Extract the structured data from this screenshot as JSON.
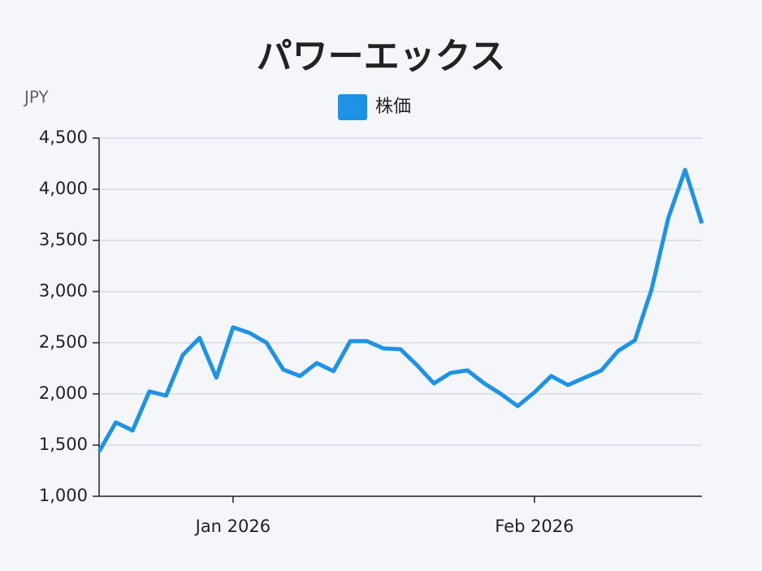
{
  "chart_data": {
    "type": "line",
    "title": "パワーエックス",
    "y_label": "JPY",
    "categories": [
      null,
      null,
      null,
      null,
      null,
      null,
      null,
      null,
      "Jan 2026",
      null,
      null,
      null,
      null,
      null,
      null,
      null,
      null,
      null,
      null,
      null,
      null,
      null,
      null,
      null,
      null,
      null,
      "Feb 2026",
      null,
      null,
      null,
      null,
      null,
      null,
      null,
      null,
      null,
      null
    ],
    "series": [
      {
        "name": "株価",
        "color": "#1e93e6",
        "values": [
          1437,
          1722,
          1643,
          2024,
          1984,
          2381,
          2548,
          2159,
          2651,
          2595,
          2500,
          2238,
          2175,
          2302,
          2222,
          2516,
          2516,
          2444,
          2437,
          2278,
          2103,
          2206,
          2230,
          2103,
          2000,
          1881,
          2016,
          2175,
          2087,
          2159,
          2230,
          2421,
          2524,
          3024,
          3722,
          4190,
          3667
        ]
      }
    ],
    "ylim": [
      1000,
      4500
    ],
    "yticks": [
      {
        "value": 1000,
        "label": "1,000"
      },
      {
        "value": 1500,
        "label": "1,500"
      },
      {
        "value": 2000,
        "label": "2,000"
      },
      {
        "value": 2500,
        "label": "2,500"
      },
      {
        "value": 3000,
        "label": "3,000"
      },
      {
        "value": 3500,
        "label": "3,500"
      },
      {
        "value": 4000,
        "label": "4,000"
      },
      {
        "value": 4500,
        "label": "4,500"
      }
    ],
    "grid": true,
    "legend": "top"
  }
}
